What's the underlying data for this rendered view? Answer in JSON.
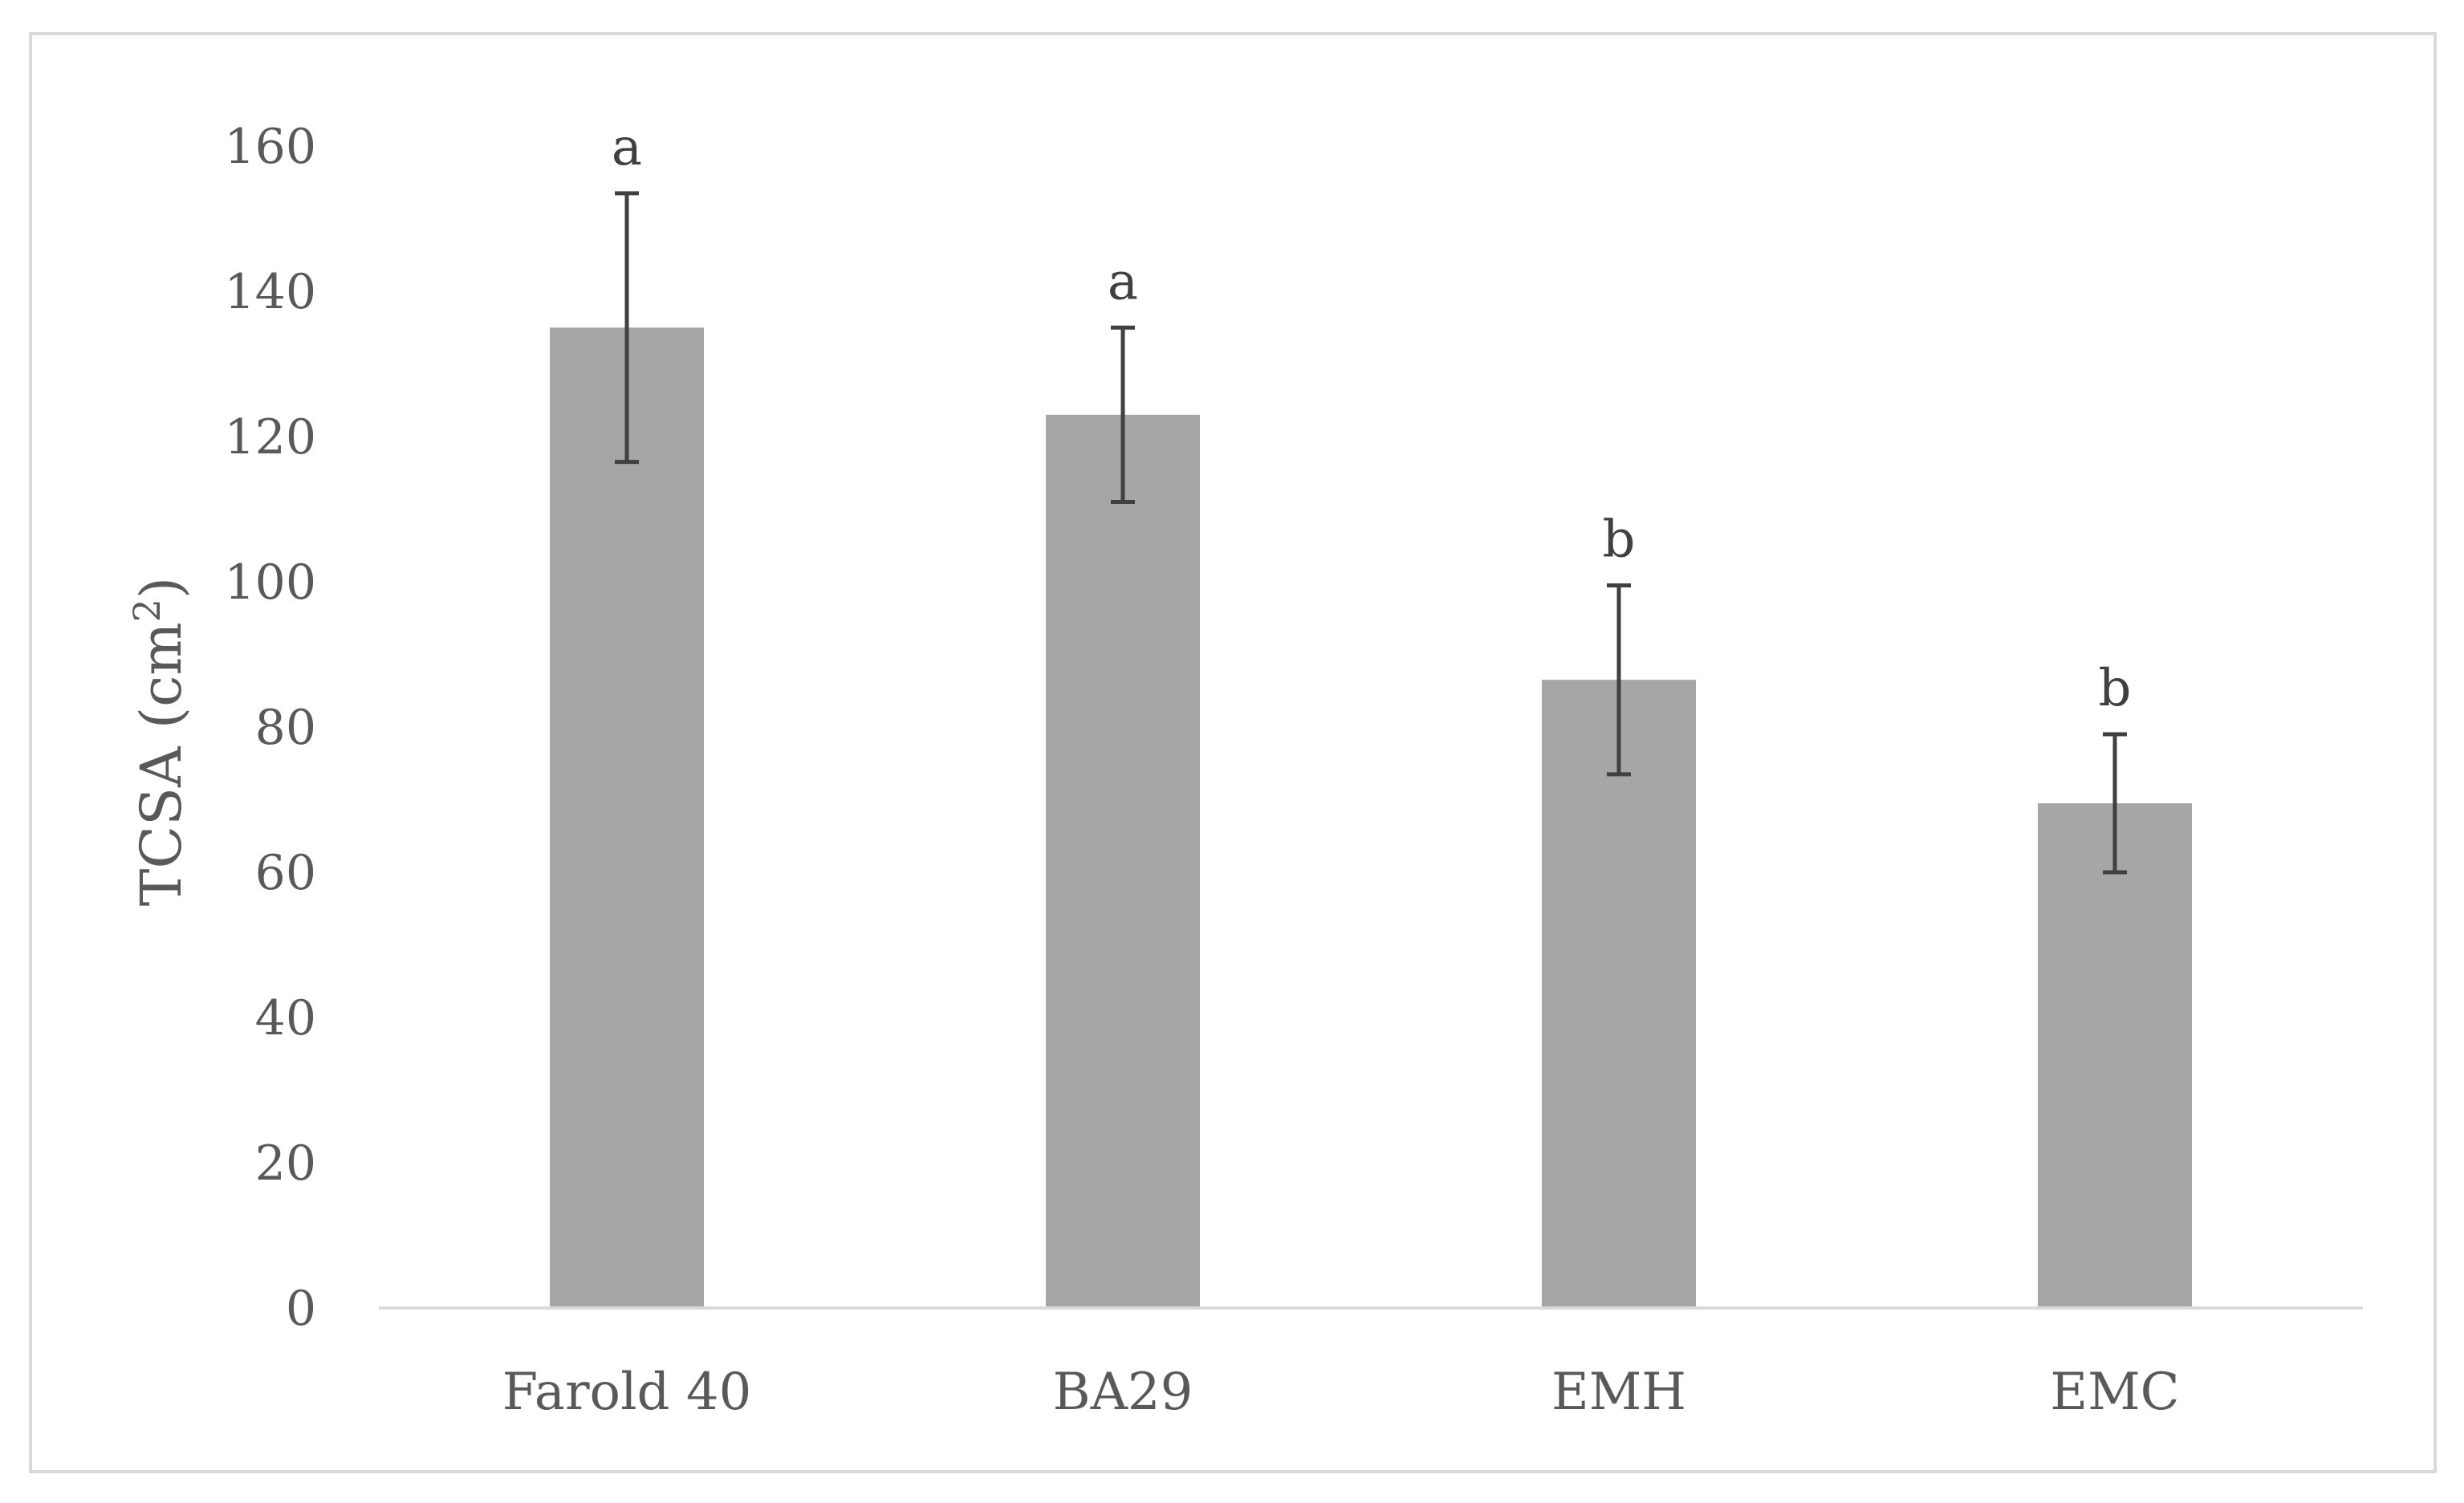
{
  "chart_data": {
    "type": "bar",
    "title": "",
    "xlabel": "",
    "ylabel": "TCSA (cm",
    "ylabel_superscript": "2",
    "ylabel_suffix": ")",
    "ylim": [
      0,
      160
    ],
    "yticks": [
      0,
      20,
      40,
      60,
      80,
      100,
      120,
      140,
      160
    ],
    "categories": [
      "Farold 40",
      "BA29",
      "EMH",
      "EMC"
    ],
    "values": [
      135,
      123,
      86.5,
      69.5
    ],
    "error": [
      18.5,
      12,
      13,
      9.5
    ],
    "significance": [
      "a",
      "a",
      "b",
      "b"
    ],
    "grid": false,
    "legend": "none",
    "colors": {
      "bar": "#a6a6a6",
      "error_bar": "#404040",
      "axis": "#d9d9d9"
    }
  }
}
